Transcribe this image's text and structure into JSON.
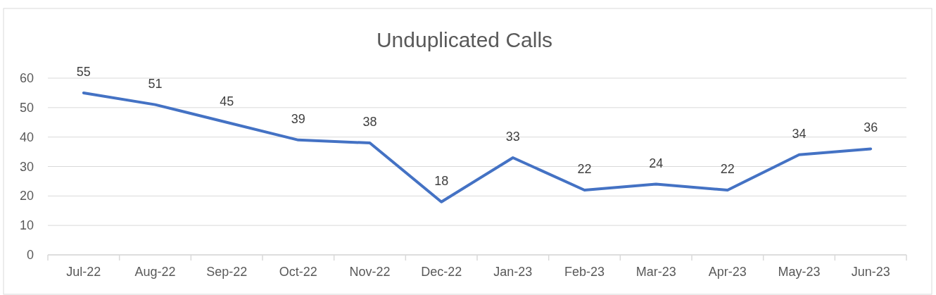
{
  "chart_data": {
    "type": "line",
    "title": "Unduplicated Calls",
    "categories": [
      "Jul-22",
      "Aug-22",
      "Sep-22",
      "Oct-22",
      "Nov-22",
      "Dec-22",
      "Jan-23",
      "Feb-23",
      "Mar-23",
      "Apr-23",
      "May-23",
      "Jun-23"
    ],
    "series": [
      {
        "color": "#4472c4",
        "values": [
          55,
          51,
          45,
          39,
          38,
          18,
          33,
          22,
          24,
          22,
          34,
          36
        ]
      }
    ],
    "ylim": [
      0,
      60
    ],
    "yticks": [
      0,
      10,
      20,
      30,
      40,
      50,
      60
    ],
    "grid": "y",
    "data_labels": true,
    "marker": "none",
    "line_style": "solid"
  }
}
